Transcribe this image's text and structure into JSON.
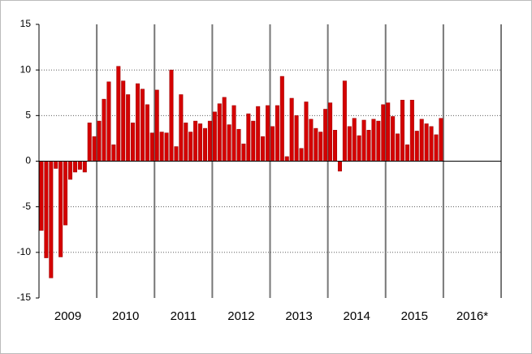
{
  "chart_data": {
    "type": "bar",
    "year_labels": [
      "2009",
      "2010",
      "2011",
      "2012",
      "2013",
      "2014",
      "2015",
      "2016*"
    ],
    "values": [
      -7.6,
      -10.6,
      -12.8,
      -0.8,
      -10.5,
      -7,
      -2,
      -1.2,
      -0.9,
      -1.2,
      4.2,
      2.7,
      4.4,
      6.8,
      8.7,
      1.8,
      10.4,
      8.8,
      7.3,
      4.2,
      8.5,
      7.9,
      6.2,
      3.1,
      7.8,
      3.2,
      3.1,
      10,
      1.6,
      7.3,
      4.2,
      3.2,
      4.4,
      4.1,
      3.6,
      4.4,
      5.4,
      6.3,
      7,
      4,
      6.1,
      3.5,
      1.9,
      5.2,
      4.4,
      6,
      2.7,
      6.1,
      3.8,
      6.1,
      9.3,
      0.5,
      6.9,
      5,
      1.4,
      6.5,
      4.6,
      3.6,
      3.2,
      5.7,
      6.4,
      3.4,
      -1.1,
      8.8,
      3.8,
      4.7,
      2.8,
      4.5,
      3.4,
      4.6,
      4.4,
      6.2,
      6.4,
      4.9,
      3,
      6.7,
      1.8,
      6.7,
      3.3,
      4.6,
      4.1,
      3.8,
      2.9,
      4.7
    ],
    "color": "#d40000",
    "ylim": [
      -15,
      15
    ],
    "yticks": [
      -15,
      -10,
      -5,
      0,
      5,
      10,
      15
    ],
    "grid": true
  }
}
